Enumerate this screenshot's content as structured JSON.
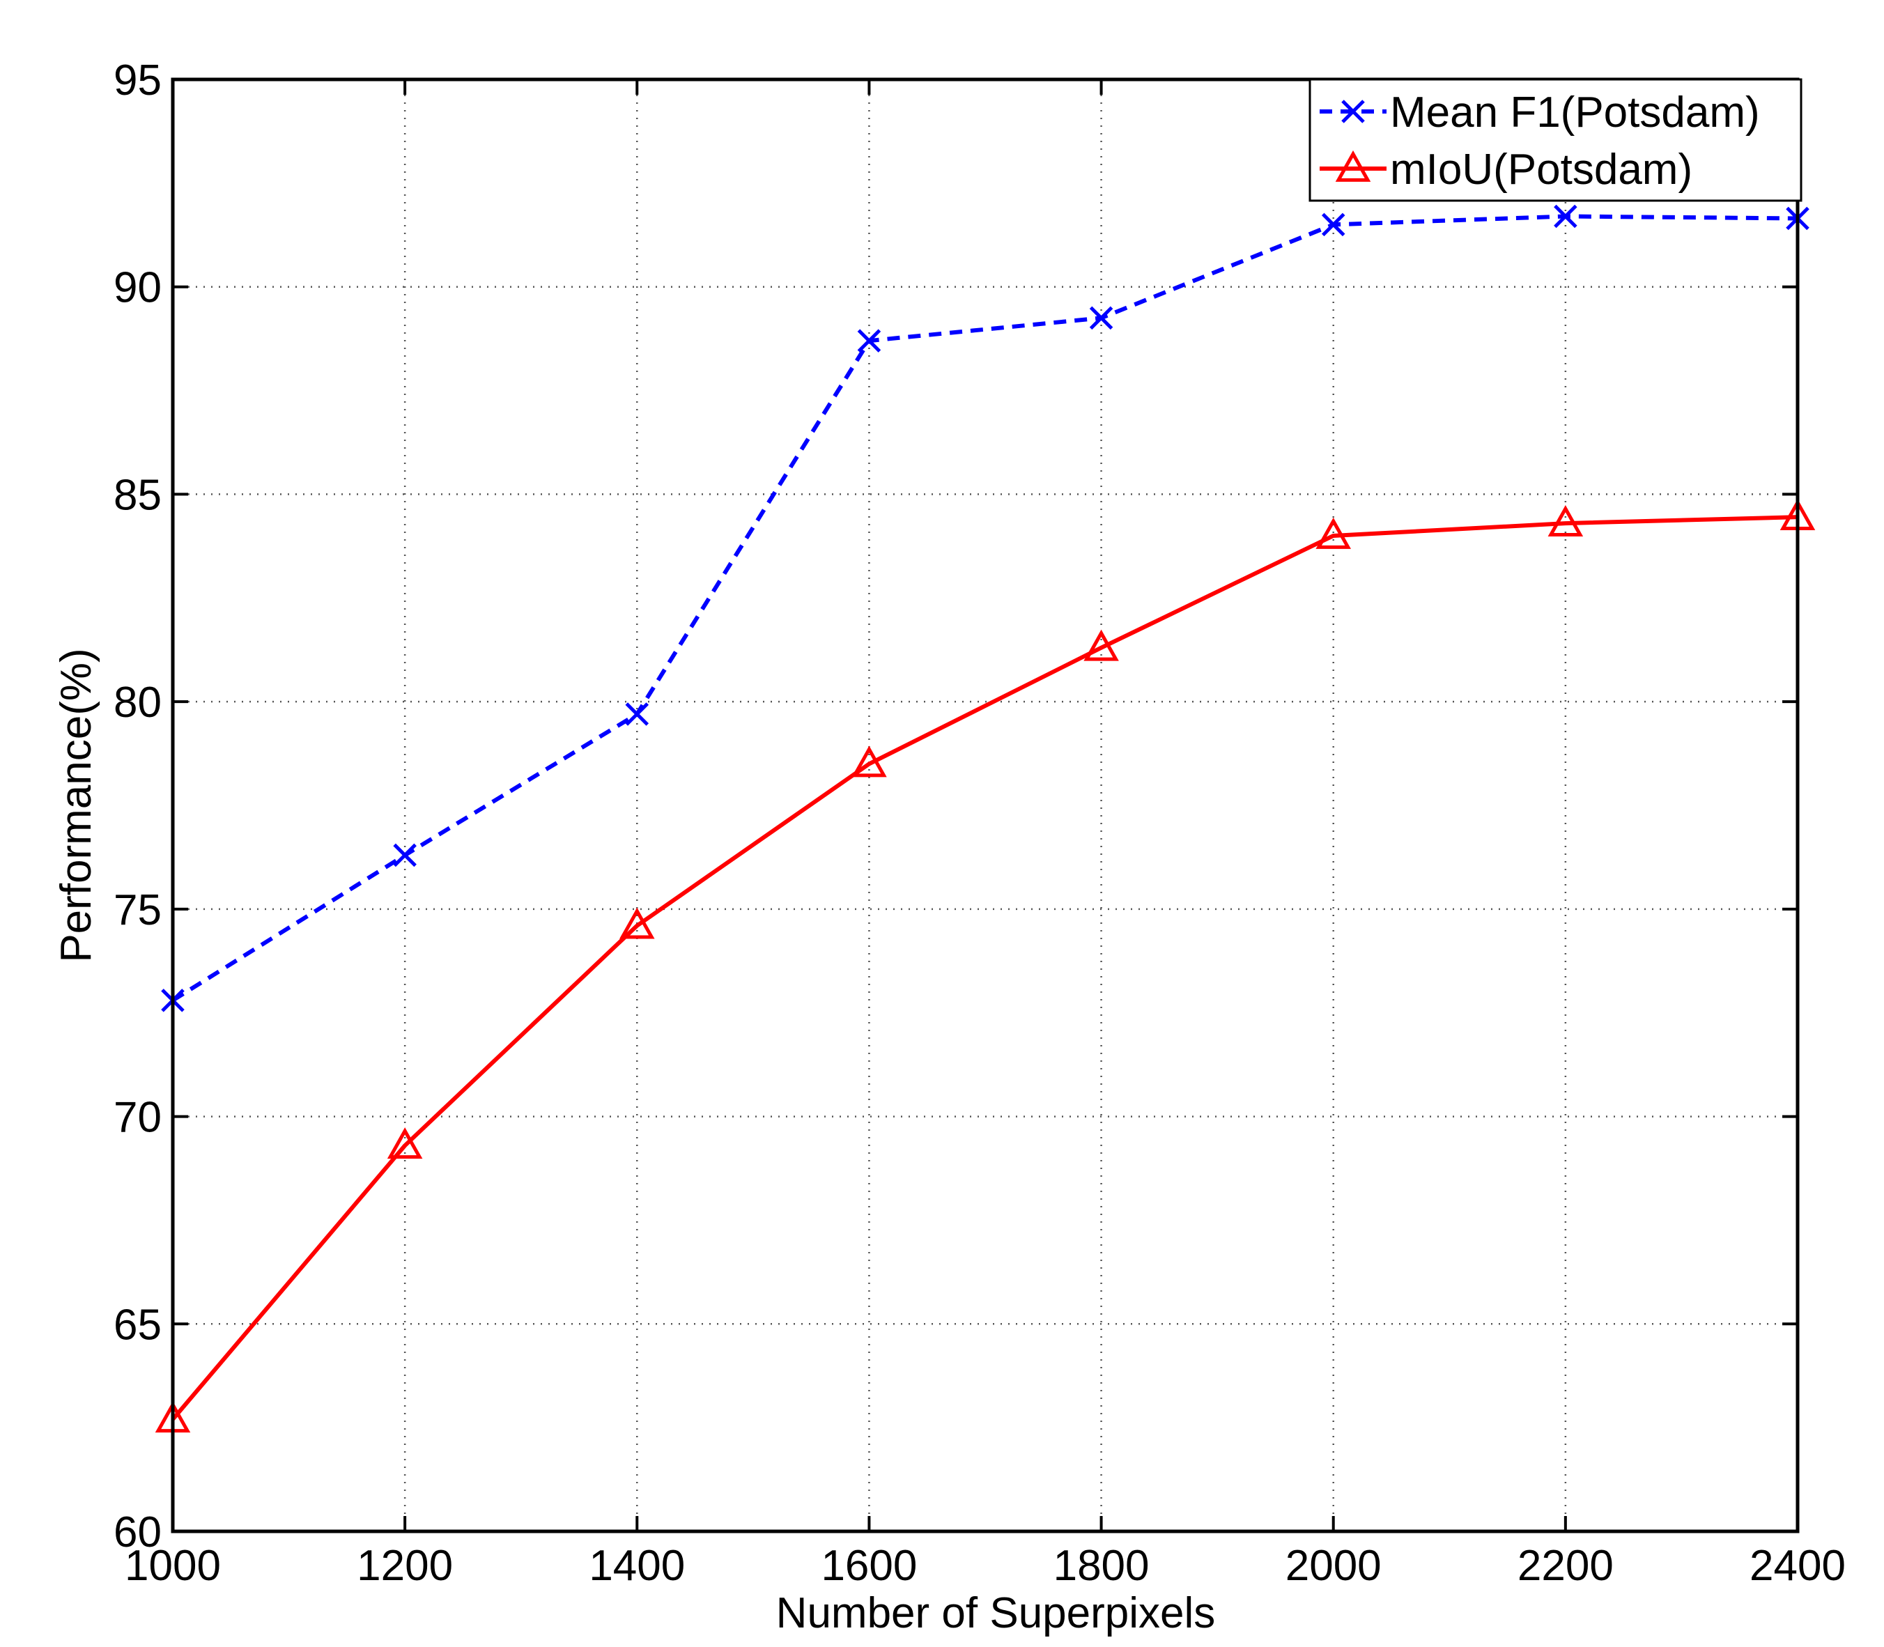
{
  "chart_data": {
    "type": "line",
    "title": "",
    "xlabel": "Number of Superpixels",
    "ylabel": "Performance(%)",
    "xlim": [
      1000,
      2400
    ],
    "ylim": [
      60,
      95
    ],
    "x": [
      1000,
      1200,
      1400,
      1600,
      1800,
      2000,
      2200,
      2400
    ],
    "xticks": [
      "1000",
      "1200",
      "1400",
      "1600",
      "1800",
      "2000",
      "2200",
      "2400"
    ],
    "yticks": [
      "60",
      "65",
      "70",
      "75",
      "80",
      "85",
      "90",
      "95"
    ],
    "grid": true,
    "legend_position": "top-right",
    "series": [
      {
        "name": "Mean F1(Potsdam)",
        "color": "#0000ff",
        "line_style": "dashed",
        "marker": "x",
        "values": [
          72.8,
          76.3,
          79.7,
          88.7,
          89.25,
          91.5,
          91.7,
          91.65
        ]
      },
      {
        "name": "mIoU(Potsdam)",
        "color": "#ff0000",
        "line_style": "solid",
        "marker": "triangle",
        "values": [
          62.7,
          69.3,
          74.6,
          78.5,
          81.3,
          84.0,
          84.3,
          84.45
        ]
      }
    ]
  }
}
